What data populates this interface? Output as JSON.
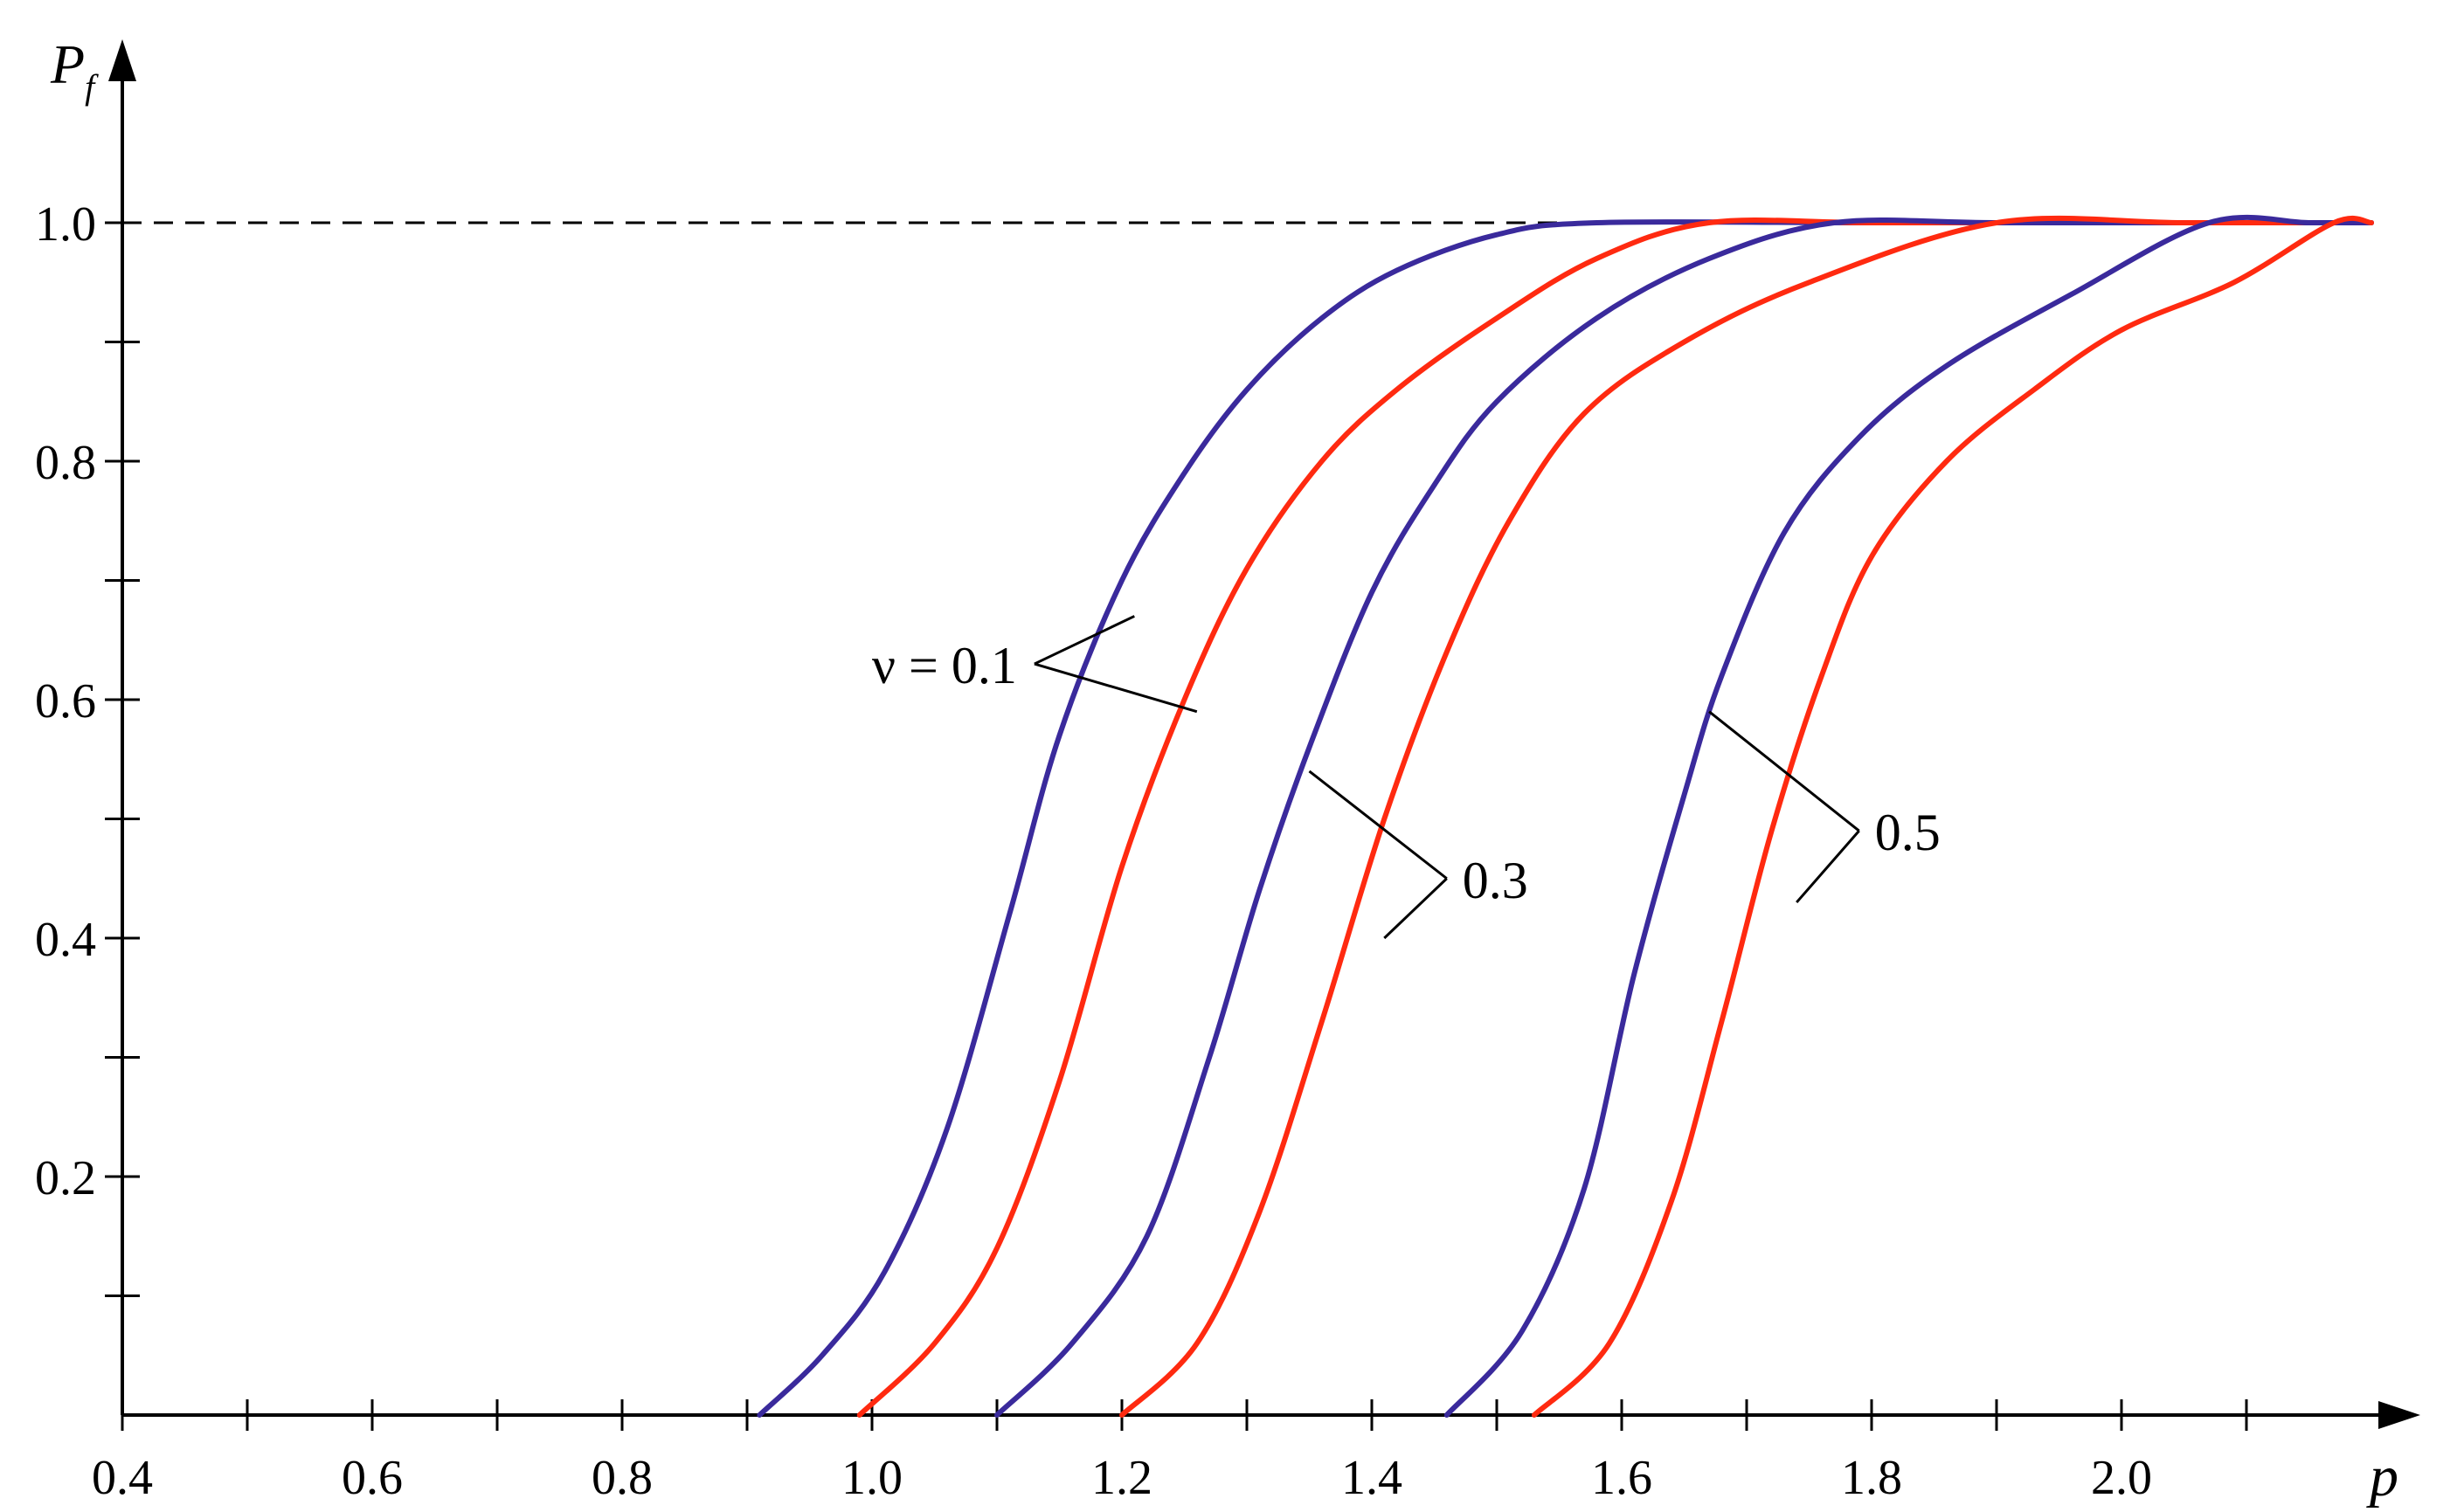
{
  "chart_data": {
    "type": "line",
    "xlabel": "p",
    "ylabel": "P",
    "ylabel_subscript": "f",
    "xlim": [
      0.4,
      2.25
    ],
    "ylim": [
      0,
      1.05
    ],
    "x_ticks": [
      0.4,
      0.6,
      0.8,
      1.0,
      1.2,
      1.4,
      1.6,
      1.8,
      2.0
    ],
    "x_tick_labels": [
      "0.4",
      "0.6",
      "0.8",
      "1.0",
      "1.2",
      "1.4",
      "1.6",
      "1.8",
      "2.0"
    ],
    "x_minor_ticks": [
      0.5,
      0.7,
      0.9,
      1.1,
      1.3,
      1.5,
      1.7,
      1.9,
      2.1
    ],
    "y_ticks": [
      0.2,
      0.4,
      0.6,
      0.8,
      1.0
    ],
    "y_tick_labels": [
      "0.2",
      "0.4",
      "0.6",
      "0.8",
      "1.0"
    ],
    "y_minor_ticks": [
      0.1,
      0.3,
      0.5,
      0.7,
      0.9
    ],
    "reference_line": {
      "y": 1.0,
      "x_from": 0.4,
      "x_to": 1.58,
      "style": "dashed"
    },
    "colors": {
      "blue": "#3a2a9c",
      "red": "#ff2a10"
    },
    "series": [
      {
        "color": "blue",
        "x": [
          0.91,
          0.96,
          1.01,
          1.06,
          1.11,
          1.15,
          1.2,
          1.25,
          1.3,
          1.36,
          1.42,
          1.5,
          1.58,
          1.8,
          2.0,
          2.2
        ],
        "y": [
          0.0,
          0.05,
          0.12,
          0.24,
          0.42,
          0.57,
          0.7,
          0.79,
          0.86,
          0.92,
          0.96,
          0.99,
          1.0,
          1.0,
          1.0,
          1.0
        ]
      },
      {
        "color": "red",
        "x": [
          0.99,
          1.05,
          1.1,
          1.15,
          1.2,
          1.25,
          1.3,
          1.36,
          1.42,
          1.5,
          1.58,
          1.67,
          1.8,
          2.0,
          2.2
        ],
        "y": [
          0.0,
          0.06,
          0.14,
          0.28,
          0.46,
          0.6,
          0.71,
          0.8,
          0.86,
          0.92,
          0.97,
          1.0,
          1.0,
          1.0,
          1.0
        ]
      },
      {
        "color": "blue",
        "x": [
          1.1,
          1.16,
          1.22,
          1.27,
          1.31,
          1.35,
          1.4,
          1.45,
          1.5,
          1.58,
          1.67,
          1.77,
          1.9,
          2.1,
          2.2
        ],
        "y": [
          0.0,
          0.06,
          0.15,
          0.3,
          0.44,
          0.56,
          0.69,
          0.78,
          0.85,
          0.92,
          0.97,
          1.0,
          1.0,
          1.0,
          1.0
        ]
      },
      {
        "color": "red",
        "x": [
          1.2,
          1.26,
          1.31,
          1.36,
          1.41,
          1.46,
          1.51,
          1.57,
          1.65,
          1.75,
          1.9,
          2.05,
          2.2
        ],
        "y": [
          0.0,
          0.06,
          0.17,
          0.33,
          0.5,
          0.64,
          0.75,
          0.84,
          0.9,
          0.95,
          1.0,
          1.0,
          1.0
        ]
      },
      {
        "color": "blue",
        "x": [
          1.46,
          1.52,
          1.57,
          1.61,
          1.65,
          1.68,
          1.73,
          1.79,
          1.86,
          1.96,
          2.07,
          2.15,
          2.2
        ],
        "y": [
          0.0,
          0.07,
          0.19,
          0.37,
          0.52,
          0.62,
          0.74,
          0.82,
          0.88,
          0.94,
          1.0,
          1.0,
          1.0
        ]
      },
      {
        "color": "red",
        "x": [
          1.53,
          1.59,
          1.64,
          1.68,
          1.72,
          1.76,
          1.8,
          1.86,
          1.93,
          2.0,
          2.09,
          2.17,
          2.2
        ],
        "y": [
          0.0,
          0.06,
          0.18,
          0.33,
          0.49,
          0.62,
          0.72,
          0.8,
          0.86,
          0.91,
          0.95,
          1.0,
          1.0
        ]
      }
    ],
    "annotations": [
      {
        "text": "ν = 0.1",
        "targets": [
          [
            1.21,
            0.67
          ],
          [
            1.26,
            0.59
          ]
        ],
        "joint": [
          1.13,
          0.63
        ],
        "label_at": [
          0.98,
          0.63
        ]
      },
      {
        "text": "0.3",
        "targets": [
          [
            1.35,
            0.54
          ],
          [
            1.41,
            0.4
          ]
        ],
        "joint": [
          1.46,
          0.45
        ],
        "label_at": [
          1.47,
          0.45
        ]
      },
      {
        "text": "0.5",
        "targets": [
          [
            1.67,
            0.59
          ],
          [
            1.74,
            0.43
          ]
        ],
        "joint": [
          1.79,
          0.49
        ],
        "label_at": [
          1.8,
          0.49
        ]
      }
    ]
  }
}
